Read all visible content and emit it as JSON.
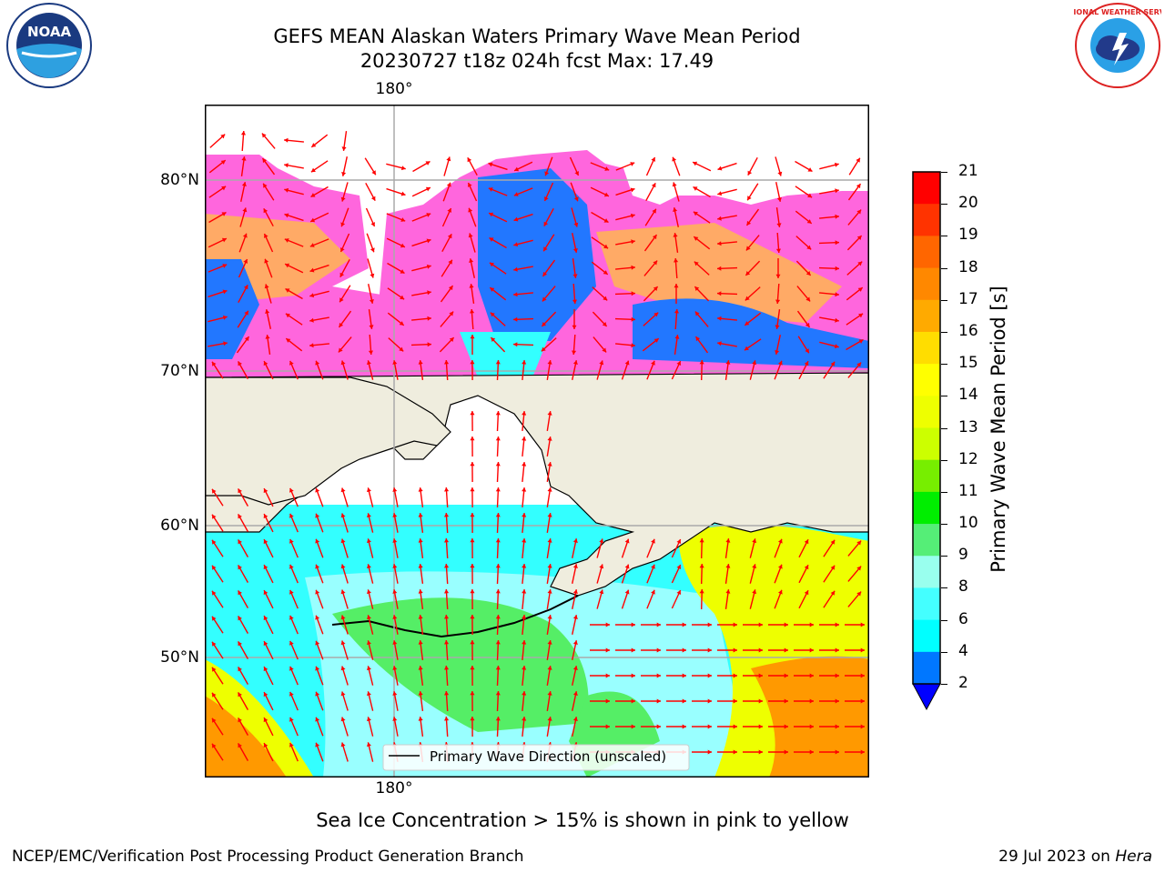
{
  "header": {
    "title_line1": "GEFS MEAN Alaskan Waters Primary Wave Mean Period",
    "title_line2": "20230727 t18z 024h fcst   Max: 17.49"
  },
  "logos": {
    "left_name": "NOAA",
    "right_name": "NATIONAL WEATHER SERVICE"
  },
  "map": {
    "lat_labels": [
      "80°N",
      "70°N",
      "60°N",
      "50°N"
    ],
    "lon_label_top": "180°",
    "lon_label_bottom": "180°",
    "legend_label": "Primary Wave Direction (unscaled)",
    "arrow_color": "#ff0000",
    "land_color": "#efedde",
    "ocean_colors": {
      "open": "#33ffff",
      "light": "#99ffff",
      "green": "#55ee66",
      "yellow": "#eeff00",
      "orange": "#ff9900",
      "ice_pink": "#ff66dd",
      "ice_orange": "#ffaa66",
      "blue": "#2277ff"
    }
  },
  "colorbar": {
    "label": "Primary Wave Mean Period [s]",
    "ticks": [
      "21",
      "20",
      "19",
      "18",
      "17",
      "16",
      "15",
      "14",
      "13",
      "12",
      "11",
      "10",
      "9",
      "8",
      "6",
      "4",
      "2"
    ],
    "colors": [
      "#ff0000",
      "#ff3300",
      "#ff6600",
      "#ff8800",
      "#ffaa00",
      "#ffdd00",
      "#ffff00",
      "#eeff00",
      "#ccff00",
      "#77ee00",
      "#00ee00",
      "#55ee77",
      "#99ffee",
      "#44ffff",
      "#00ffff",
      "#0077ff"
    ],
    "extend_color": "#0000ff"
  },
  "caption": "Sea Ice Concentration > 15% is shown in pink to yellow",
  "footer": {
    "left": "NCEP/EMC/Verification Post Processing Product Generation Branch",
    "right_date": "29 Jul 2023 on ",
    "right_machine": "Hera"
  }
}
